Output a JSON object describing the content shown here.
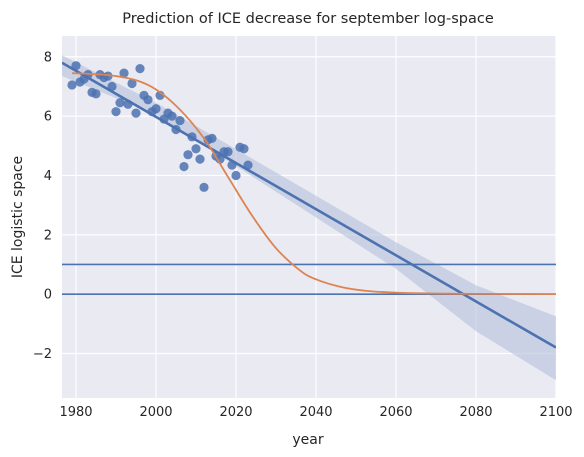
{
  "chart_data": {
    "type": "scatter",
    "title": "Prediction of ICE decrease for september log-space",
    "xlabel": "year",
    "ylabel": "ICE logistic space",
    "xlim": [
      1976.5,
      2100
    ],
    "ylim": [
      -3.5,
      8.7
    ],
    "xticks": [
      1980,
      2000,
      2020,
      2040,
      2060,
      2080,
      2100
    ],
    "yticks": [
      -2,
      0,
      2,
      4,
      6,
      8
    ],
    "xtick_labels": [
      "1980",
      "2000",
      "2020",
      "2040",
      "2060",
      "2080",
      "2100"
    ],
    "ytick_labels": [
      "−2",
      "0",
      "2",
      "4",
      "6",
      "8"
    ],
    "grid": true,
    "background": "#eaeaf2",
    "colors": {
      "points": "#4c72b0",
      "regression": "#4c72b0",
      "band": "#b4bfdb",
      "logistic": "#dd8452",
      "hlines": "#4c72b0"
    },
    "series": [
      {
        "kind": "points",
        "x": [
          1979,
          1980,
          1981,
          1982,
          1983,
          1984,
          1985,
          1986,
          1987,
          1988,
          1989,
          1990,
          1991,
          1992,
          1993,
          1994,
          1995,
          1996,
          1997,
          1998,
          1999,
          2000,
          2001,
          2002,
          2003,
          2004,
          2005,
          2006,
          2007,
          2008,
          2009,
          2010,
          2011,
          2012,
          2013,
          2014,
          2015,
          2016,
          2017,
          2018,
          2019,
          2020,
          2021,
          2022,
          2023
        ],
        "y": [
          7.05,
          7.7,
          7.15,
          7.25,
          7.4,
          6.8,
          6.75,
          7.4,
          7.3,
          7.35,
          7.0,
          6.15,
          6.45,
          7.45,
          6.4,
          7.1,
          6.1,
          7.6,
          6.7,
          6.55,
          6.15,
          6.25,
          6.7,
          5.9,
          6.1,
          6.0,
          5.55,
          5.85,
          4.3,
          4.7,
          5.3,
          4.9,
          4.55,
          3.6,
          5.2,
          5.25,
          4.65,
          4.55,
          4.8,
          4.8,
          4.35,
          4.0,
          4.95,
          4.9,
          4.35
        ]
      },
      {
        "kind": "linear_fit",
        "x": [
          1976.5,
          2100
        ],
        "y": [
          7.8,
          -1.8
        ],
        "ci_x": [
          1976.5,
          2000,
          2030,
          2060,
          2080,
          2100
        ],
        "ci_lower": [
          7.35,
          6.05,
          3.45,
          0.85,
          -1.25,
          -2.9
        ],
        "ci_upper": [
          8.05,
          6.45,
          4.1,
          1.75,
          0.3,
          -0.75
        ]
      },
      {
        "kind": "logistic_curve",
        "x": [
          1979,
          1990,
          1998,
          2005,
          2012,
          2018,
          2024,
          2030,
          2036,
          2040,
          2046,
          2052,
          2060,
          2070,
          2080,
          2100
        ],
        "y": [
          7.45,
          7.35,
          7.05,
          6.35,
          5.25,
          3.95,
          2.65,
          1.55,
          0.8,
          0.5,
          0.25,
          0.12,
          0.05,
          0.02,
          0.01,
          0.0
        ]
      },
      {
        "kind": "hline",
        "y": 1
      },
      {
        "kind": "hline",
        "y": 0
      }
    ]
  }
}
